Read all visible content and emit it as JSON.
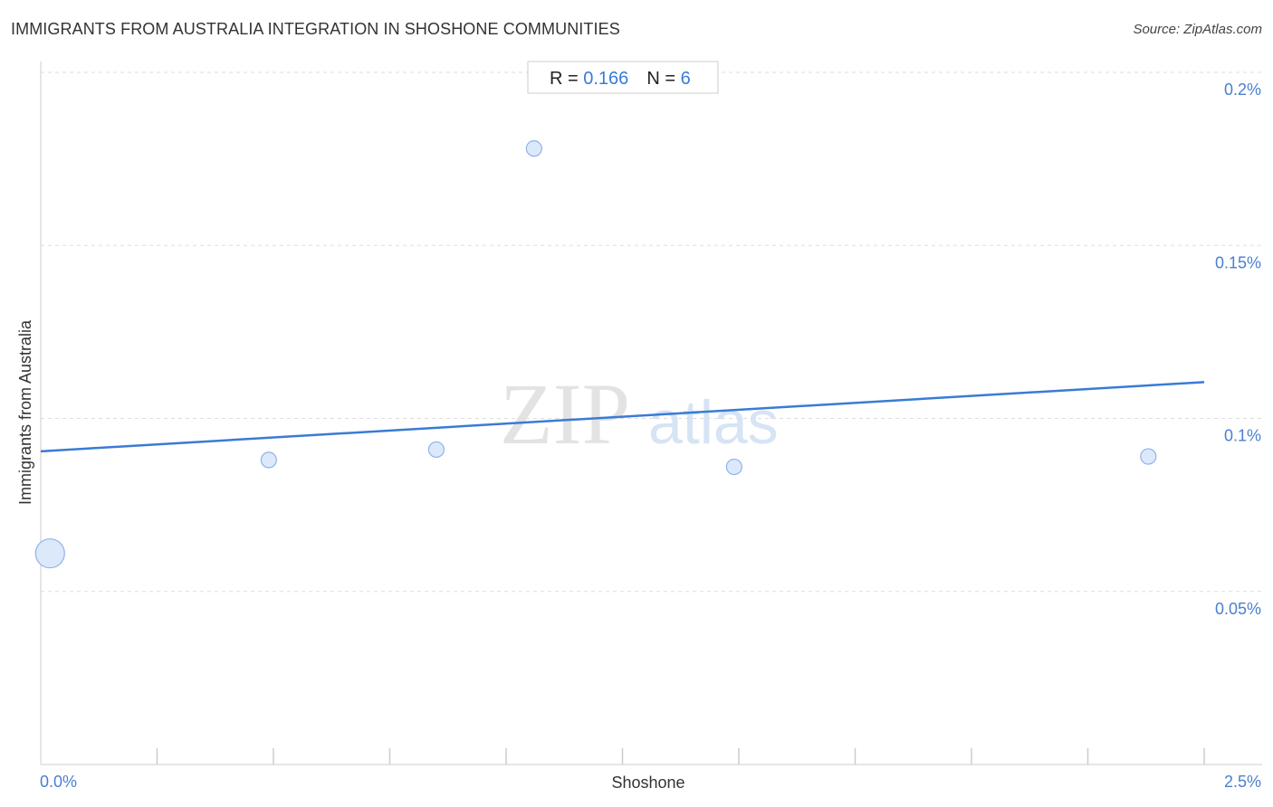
{
  "header": {
    "title": "IMMIGRANTS FROM AUSTRALIA INTEGRATION IN SHOSHONE COMMUNITIES",
    "source": "Source: ZipAtlas.com"
  },
  "stats": {
    "r_label": "R = ",
    "r_value": "0.166",
    "n_label": "N = ",
    "n_value": "6"
  },
  "watermark": {
    "zip": "ZIP",
    "atlas": "atlas"
  },
  "colors": {
    "accent": "#3a7bd5",
    "point_fill": "#dce9fb",
    "point_stroke": "#8fb3e8",
    "grid": "#dddddd",
    "axis": "#cccccc"
  },
  "chart_data": {
    "type": "scatter",
    "title": "IMMIGRANTS FROM AUSTRALIA INTEGRATION IN SHOSHONE COMMUNITIES",
    "xlabel": "Shoshone",
    "ylabel": "Immigrants from Australia",
    "xlim": [
      0,
      2.5
    ],
    "ylim": [
      0,
      0.2
    ],
    "x_unit": "%",
    "y_unit": "%",
    "x_tick_labels": [
      {
        "value": 0,
        "label": "0.0%"
      },
      {
        "value": 2.5,
        "label": "2.5%"
      }
    ],
    "y_tick_labels": [
      {
        "value": 0.05,
        "label": "0.05%"
      },
      {
        "value": 0.1,
        "label": "0.1%"
      },
      {
        "value": 0.15,
        "label": "0.15%"
      },
      {
        "value": 0.2,
        "label": "0.2%"
      }
    ],
    "points": [
      {
        "x": 0.02,
        "y": 0.061,
        "size": "large"
      },
      {
        "x": 0.49,
        "y": 0.088,
        "size": "small"
      },
      {
        "x": 0.85,
        "y": 0.091,
        "size": "small"
      },
      {
        "x": 1.06,
        "y": 0.178,
        "size": "small"
      },
      {
        "x": 1.49,
        "y": 0.086,
        "size": "small"
      },
      {
        "x": 2.38,
        "y": 0.089,
        "size": "small"
      }
    ],
    "trendline": {
      "x": [
        0,
        2.5
      ],
      "y": [
        0.0905,
        0.1105
      ]
    },
    "grid": true,
    "legend": "none"
  }
}
